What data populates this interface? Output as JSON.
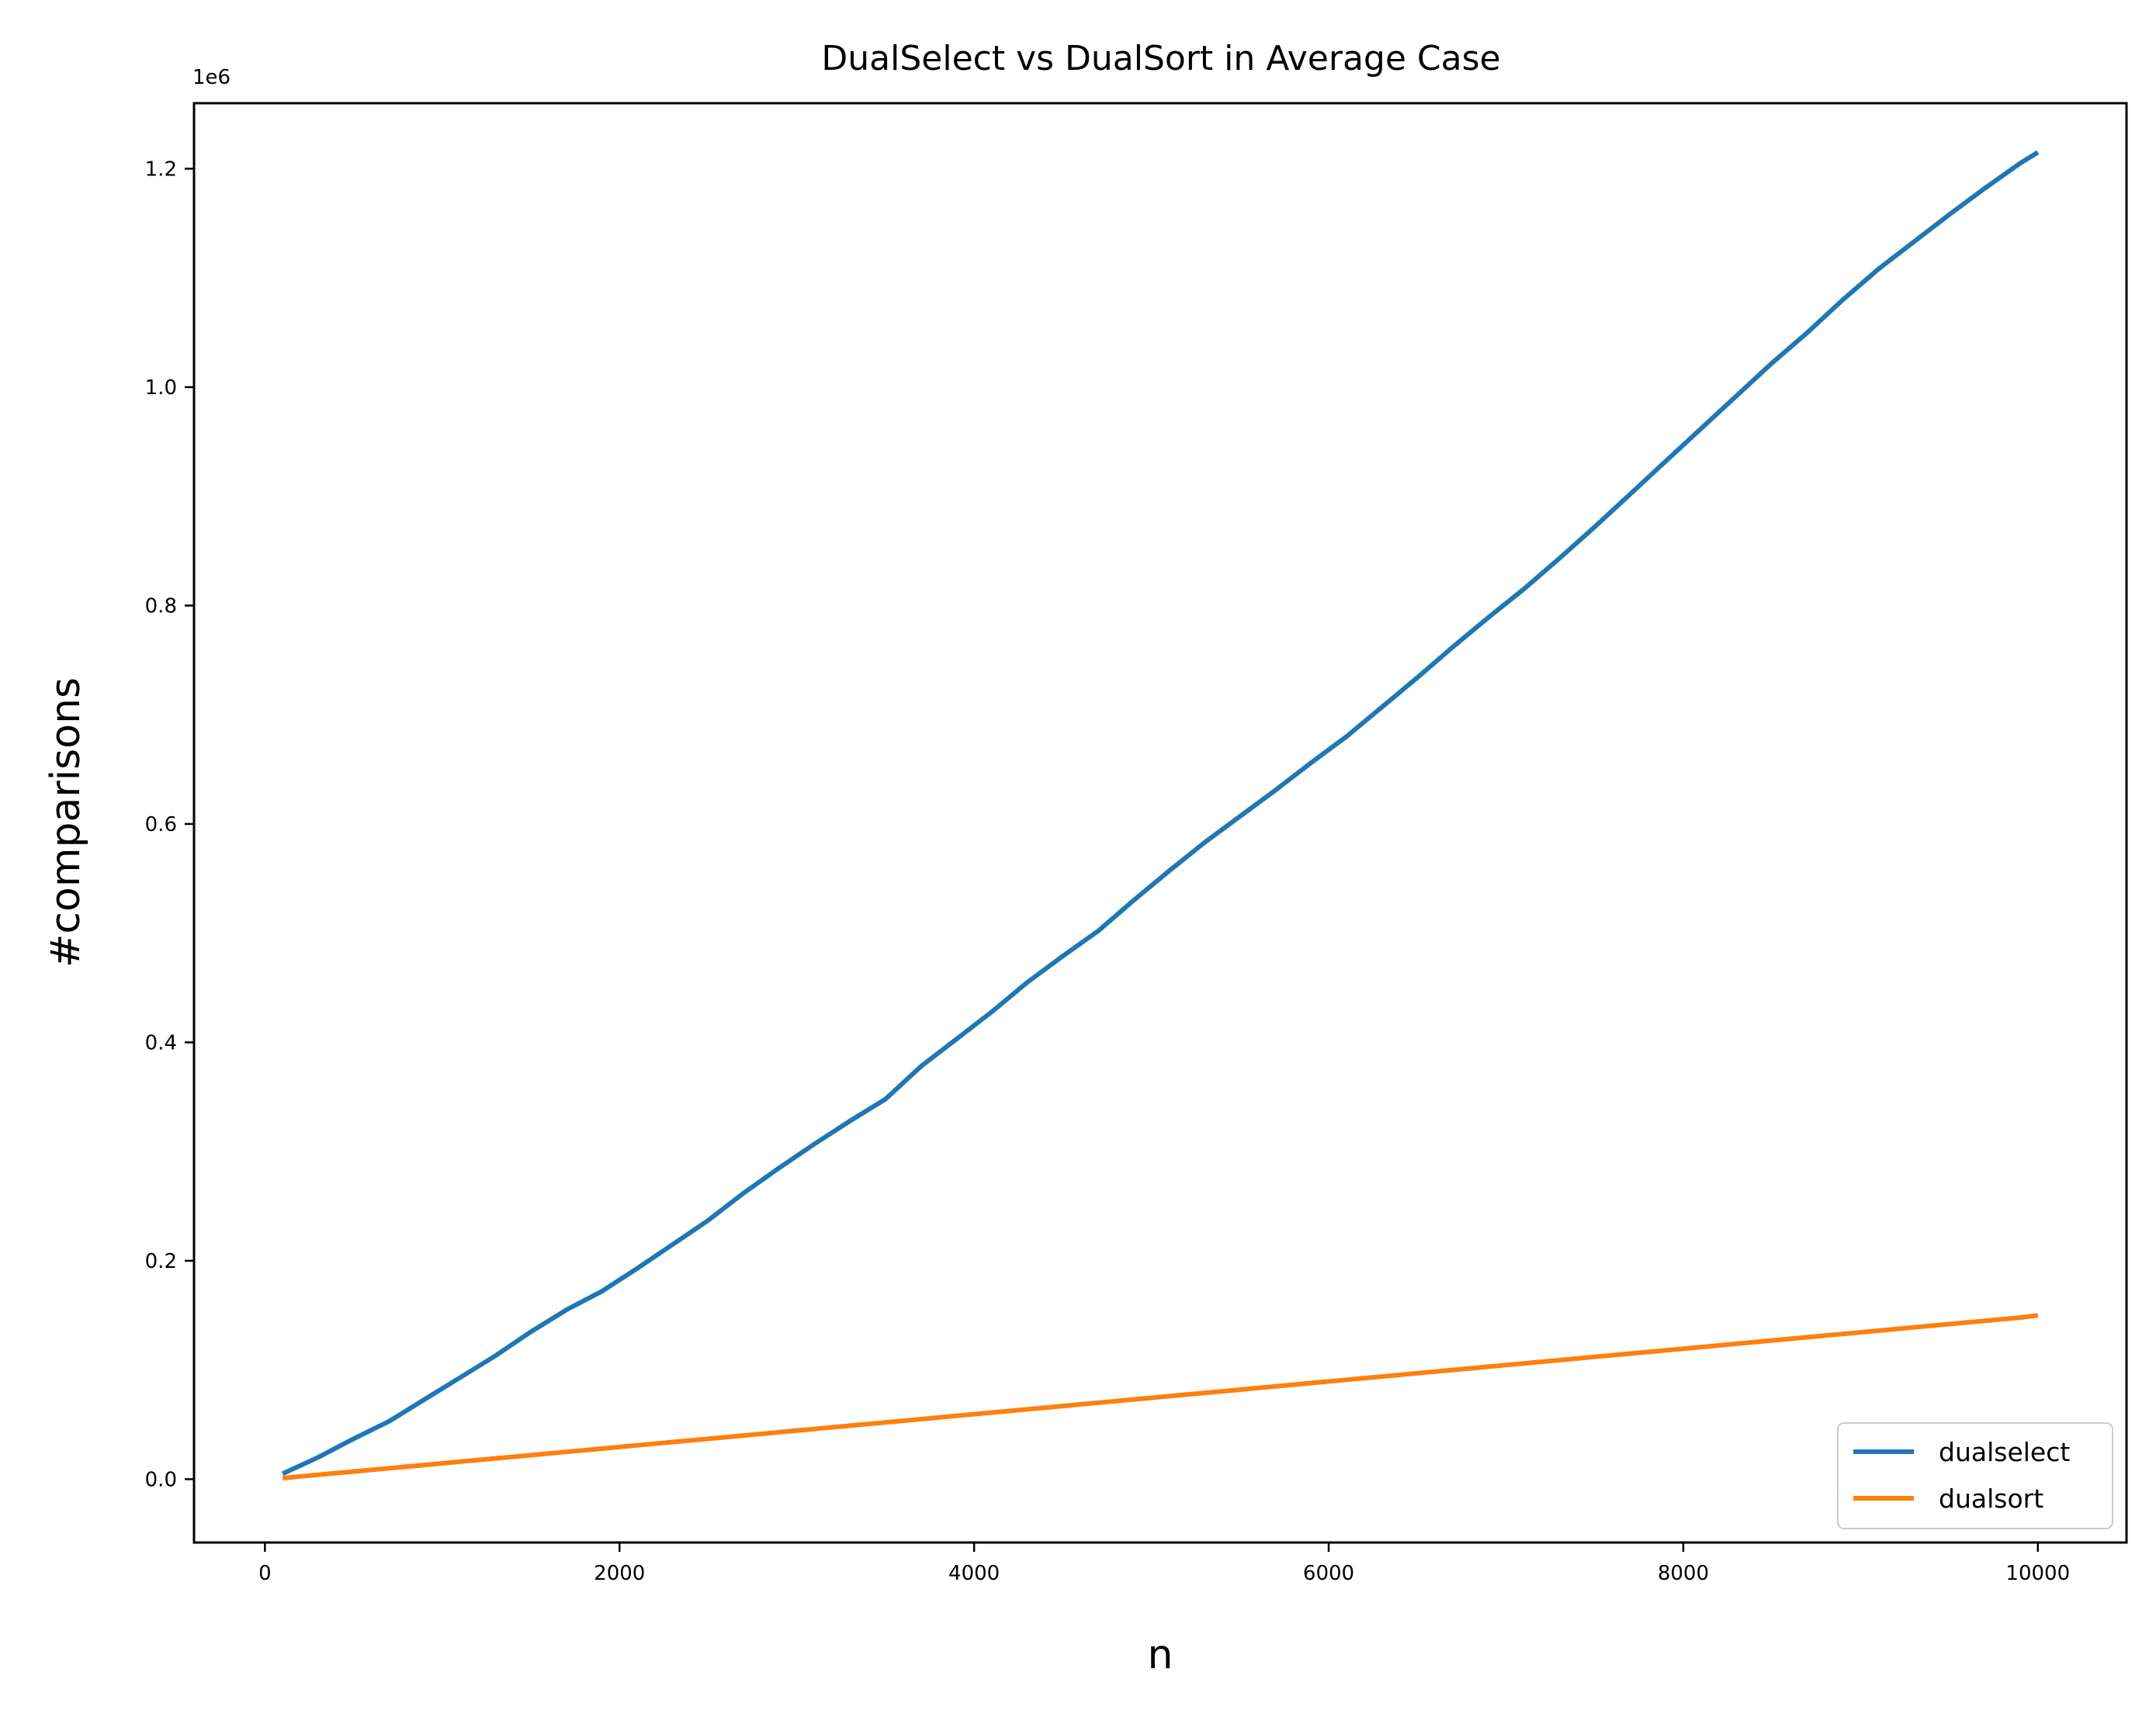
{
  "chart_data": {
    "type": "line",
    "title": "DualSelect vs DualSort in Average Case",
    "xlabel": "n",
    "ylabel": "#comparisons",
    "y_offset_label": "1e6",
    "xlim": [
      -400,
      10500
    ],
    "ylim": [
      -0.058,
      1.26
    ],
    "xticks": [
      0,
      2000,
      4000,
      6000,
      8000,
      10000
    ],
    "xtick_labels": [
      "0",
      "2000",
      "4000",
      "6000",
      "8000",
      "10000"
    ],
    "yticks": [
      0.0,
      0.2,
      0.4,
      0.6,
      0.8,
      1.0,
      1.2
    ],
    "ytick_labels": [
      "0.0",
      "0.2",
      "0.4",
      "0.6",
      "0.8",
      "1.0",
      "1.2"
    ],
    "grid": false,
    "legend_position": "lower-right",
    "x": [
      100,
      300,
      500,
      700,
      900,
      1100,
      1300,
      1500,
      1700,
      1900,
      2100,
      2300,
      2500,
      2700,
      2900,
      3100,
      3300,
      3500,
      3700,
      3900,
      4100,
      4300,
      4500,
      4700,
      4900,
      5100,
      5300,
      5500,
      5700,
      5900,
      6100,
      6300,
      6500,
      6700,
      6900,
      7100,
      7300,
      7500,
      7700,
      7900,
      8100,
      8300,
      8500,
      8700,
      8900,
      9100,
      9300,
      9500,
      9700,
      9900,
      10000
    ],
    "series": [
      {
        "name": "dualselect",
        "color": "#1f77b4",
        "values": [
          0.005,
          0.02,
          0.037,
          0.053,
          0.073,
          0.093,
          0.113,
          0.135,
          0.155,
          0.172,
          0.193,
          0.215,
          0.237,
          0.262,
          0.285,
          0.307,
          0.328,
          0.348,
          0.378,
          0.403,
          0.428,
          0.455,
          0.479,
          0.502,
          0.53,
          0.557,
          0.583,
          0.607,
          0.631,
          0.656,
          0.68,
          0.707,
          0.734,
          0.762,
          0.789,
          0.815,
          0.843,
          0.872,
          0.902,
          0.932,
          0.962,
          0.992,
          1.022,
          1.05,
          1.08,
          1.108,
          1.133,
          1.158,
          1.182,
          1.205,
          1.215
        ]
      },
      {
        "name": "dualsort",
        "color": "#ff7f0e",
        "values": [
          0.001,
          0.004,
          0.007,
          0.01,
          0.013,
          0.016,
          0.019,
          0.022,
          0.025,
          0.028,
          0.031,
          0.034,
          0.037,
          0.04,
          0.043,
          0.046,
          0.049,
          0.052,
          0.055,
          0.058,
          0.061,
          0.064,
          0.067,
          0.07,
          0.073,
          0.076,
          0.079,
          0.082,
          0.085,
          0.088,
          0.091,
          0.094,
          0.097,
          0.1,
          0.103,
          0.106,
          0.109,
          0.112,
          0.115,
          0.118,
          0.121,
          0.124,
          0.127,
          0.13,
          0.133,
          0.136,
          0.139,
          0.142,
          0.145,
          0.148,
          0.15
        ]
      }
    ]
  }
}
